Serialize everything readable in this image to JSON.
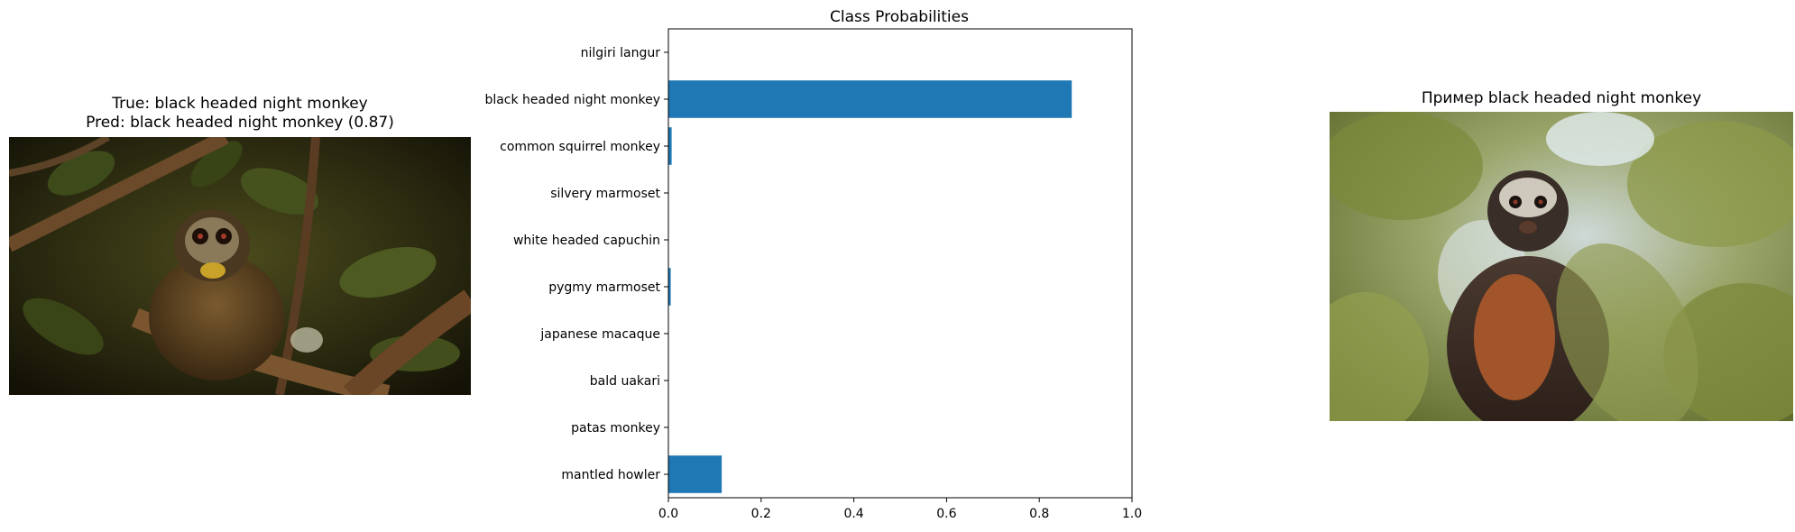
{
  "left_panel": {
    "title_line1": "True: black headed night monkey",
    "title_line2": "Pred: black headed night monkey (0.87)"
  },
  "right_panel": {
    "title": "Пример black headed night monkey"
  },
  "chart_data": {
    "type": "bar",
    "orientation": "horizontal",
    "title": "Class Probabilities",
    "xlabel": "",
    "ylabel": "",
    "xlim": [
      0,
      1.0
    ],
    "xticks": [
      "0.0",
      "0.2",
      "0.4",
      "0.6",
      "0.8",
      "1.0"
    ],
    "categories": [
      "nilgiri langur",
      "black headed night monkey",
      "common squirrel monkey",
      "silvery marmoset",
      "white headed capuchin",
      "pygmy marmoset",
      "japanese macaque",
      "bald uakari",
      "patas monkey",
      "mantled howler"
    ],
    "values": [
      0.0,
      0.87,
      0.007,
      0.0,
      0.0,
      0.005,
      0.0,
      0.0,
      0.0,
      0.115
    ],
    "bar_color": "#1f77b4",
    "grid": false
  }
}
